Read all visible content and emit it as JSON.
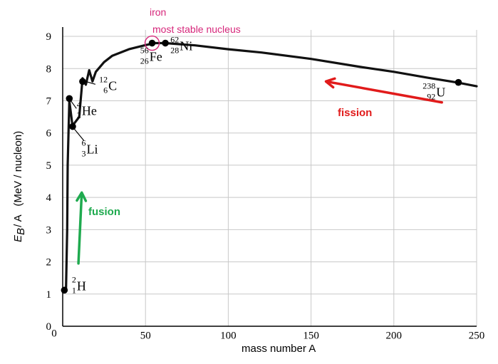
{
  "chart_data": {
    "type": "line",
    "xlabel": "mass number A",
    "ylabel": "E_B / A   (MeV / nucleon)",
    "ylabel_parts": {
      "main": "E",
      "sub": "B",
      "rest": " / A   (MeV / nucleon)"
    },
    "xlim": [
      0,
      250
    ],
    "ylim": [
      0,
      9.2
    ],
    "x_ticks": [
      0,
      50,
      100,
      150,
      200,
      250
    ],
    "y_ticks": [
      0,
      1,
      2,
      3,
      4,
      5,
      6,
      7,
      8,
      9
    ],
    "x_tick_labels": [
      "0",
      "50",
      "100",
      "150",
      "200",
      "250"
    ],
    "y_tick_labels": [
      "0",
      "1",
      "2",
      "3",
      "4",
      "5",
      "6",
      "7",
      "8",
      "9"
    ],
    "grid": true,
    "series": [
      {
        "color": "#111111",
        "points": [
          [
            2,
            1.1
          ],
          [
            2.7,
            3.0
          ],
          [
            3,
            5.0
          ],
          [
            4,
            7.0
          ],
          [
            6,
            6.2
          ],
          [
            7,
            6.3
          ],
          [
            10,
            6.5
          ],
          [
            12,
            7.7
          ],
          [
            14,
            7.5
          ],
          [
            16,
            7.95
          ],
          [
            18,
            7.6
          ],
          [
            20,
            7.9
          ],
          [
            25,
            8.2
          ],
          [
            30,
            8.4
          ],
          [
            40,
            8.6
          ],
          [
            50,
            8.73
          ],
          [
            56,
            8.79
          ],
          [
            62,
            8.79
          ],
          [
            80,
            8.72
          ],
          [
            100,
            8.6
          ],
          [
            120,
            8.5
          ],
          [
            150,
            8.3
          ],
          [
            180,
            8.05
          ],
          [
            200,
            7.9
          ],
          [
            220,
            7.72
          ],
          [
            238,
            7.57
          ],
          [
            250,
            7.45
          ]
        ]
      }
    ],
    "labeled_points": [
      {
        "x": 1,
        "y": 1.12,
        "symbol": "H",
        "mass": "2",
        "atomic": "1"
      },
      {
        "x": 4,
        "y": 7.07,
        "symbol": "He",
        "mass": "4",
        "atomic": "2"
      },
      {
        "x": 6,
        "y": 6.2,
        "symbol": "Li",
        "mass": "6",
        "atomic": "3"
      },
      {
        "x": 12,
        "y": 7.6,
        "symbol": "C",
        "mass": "12",
        "atomic": "6"
      },
      {
        "x": 54,
        "y": 8.79,
        "symbol": "Fe",
        "mass": "56",
        "atomic": "26"
      },
      {
        "x": 62,
        "y": 8.79,
        "symbol": "Ni",
        "mass": "62",
        "atomic": "28"
      },
      {
        "x": 239,
        "y": 7.57,
        "symbol": "U",
        "mass": "238",
        "atomic": "92"
      }
    ],
    "annotations": {
      "iron_label": "iron",
      "iron_note": "most stable nucleus",
      "fusion_label": "fusion",
      "fission_label": "fission"
    },
    "colors": {
      "curve": "#111111",
      "fusion": "#1faa4f",
      "fission": "#e11b1b",
      "iron": "#d6267a",
      "grid": "#c8c8c8"
    }
  }
}
